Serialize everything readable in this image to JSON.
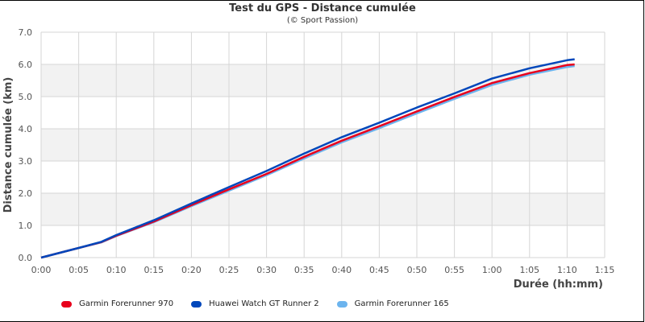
{
  "chart_data": {
    "type": "line",
    "title": "Test du GPS - Distance cumulée",
    "subtitle": "(© Sport Passion)",
    "xlabel": "Durée (hh:mm)",
    "ylabel": "Distance cumulée (km)",
    "xlim_minutes": [
      0,
      75
    ],
    "ylim": [
      0,
      7
    ],
    "x_ticks": [
      "0:00",
      "0:05",
      "0:10",
      "0:15",
      "0:20",
      "0:25",
      "0:30",
      "0:35",
      "0:40",
      "0:45",
      "0:50",
      "0:55",
      "1:00",
      "1:05",
      "1:10",
      "1:15"
    ],
    "y_ticks": [
      "0.0",
      "1.0",
      "2.0",
      "3.0",
      "4.0",
      "5.0",
      "6.0",
      "7.0"
    ],
    "grid": true,
    "alternating_bands": true,
    "legend_position": "bottom",
    "x_minutes": [
      0,
      5,
      8,
      10,
      15,
      20,
      25,
      30,
      35,
      40,
      45,
      50,
      55,
      60,
      65,
      70,
      71
    ],
    "series": [
      {
        "name": "Garmin Forerunner 970",
        "color": "#e8001c",
        "values": [
          0,
          0.3,
          0.48,
          0.68,
          1.12,
          1.63,
          2.12,
          2.6,
          3.13,
          3.63,
          4.08,
          4.54,
          4.99,
          5.42,
          5.73,
          5.98,
          6.0
        ]
      },
      {
        "name": "Huawei Watch GT Runner 2",
        "color": "#0047bb",
        "values": [
          0,
          0.3,
          0.49,
          0.7,
          1.16,
          1.68,
          2.19,
          2.69,
          3.23,
          3.74,
          4.19,
          4.66,
          5.1,
          5.56,
          5.88,
          6.13,
          6.16
        ]
      },
      {
        "name": "Garmin Forerunner 165",
        "color": "#6cb4ee",
        "values": [
          0,
          0.3,
          0.47,
          0.67,
          1.1,
          1.6,
          2.08,
          2.56,
          3.08,
          3.58,
          4.02,
          4.48,
          4.93,
          5.36,
          5.68,
          5.92,
          5.95
        ]
      }
    ]
  },
  "labels": {
    "title": "Test du GPS - Distance cumulée",
    "subtitle": "(© Sport Passion)",
    "xlabel": "Durée (hh:mm)",
    "ylabel": "Distance cumulée (km)"
  },
  "legend": [
    {
      "label": "Garmin Forerunner 970",
      "color": "#e8001c"
    },
    {
      "label": "Huawei Watch GT Runner 2",
      "color": "#0047bb"
    },
    {
      "label": "Garmin Forerunner 165",
      "color": "#6cb4ee"
    }
  ]
}
